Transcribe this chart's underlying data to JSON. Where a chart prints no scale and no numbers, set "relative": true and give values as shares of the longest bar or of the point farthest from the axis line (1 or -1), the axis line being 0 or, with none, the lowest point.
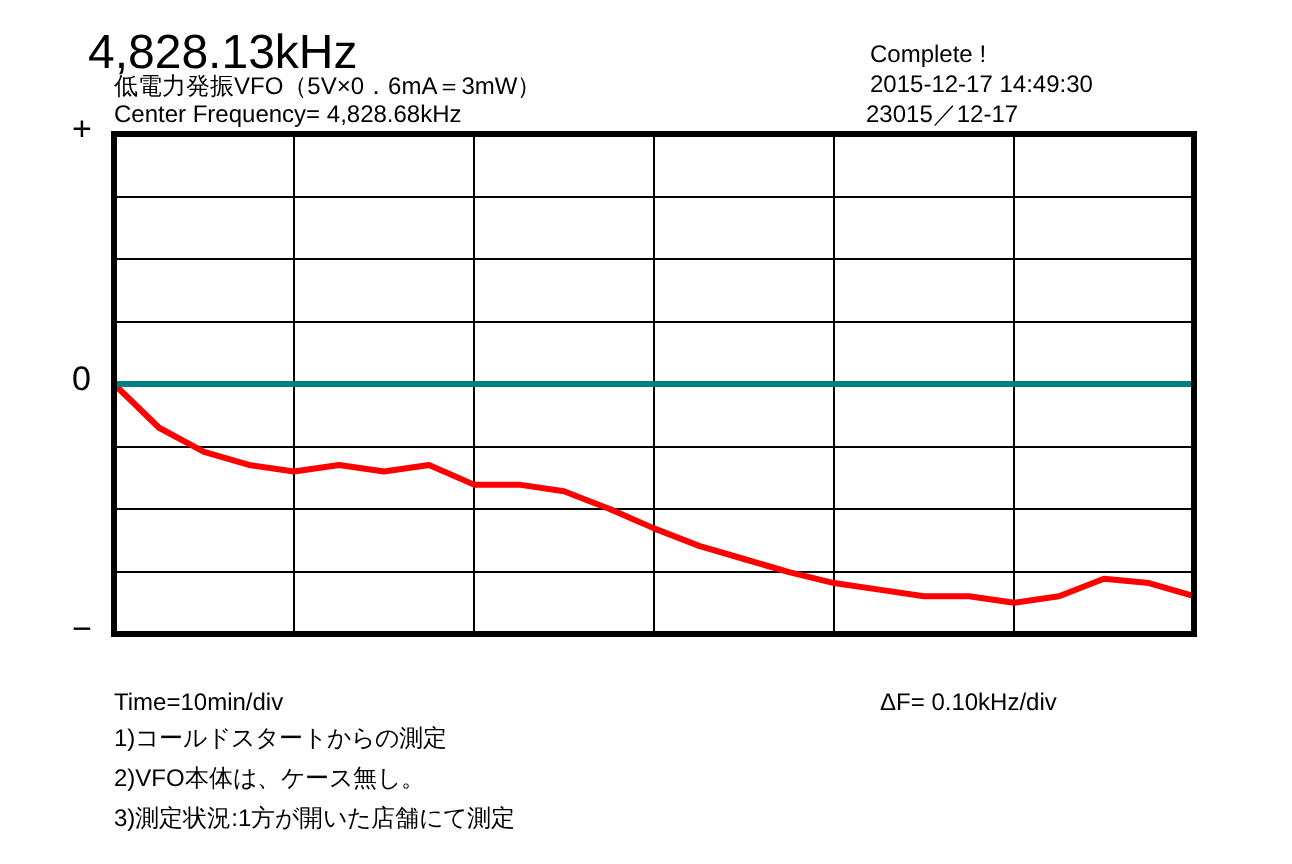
{
  "chart_data": {
    "type": "line",
    "title": "4,828.13kHz",
    "subtitle": "低電力発振VFO（5V×0．6mA＝3mW）",
    "annotations": [
      "+",
      "0",
      "−",
      "Complete !",
      "2015-12-17  14:49:30",
      "Center Frequency=  4,828.68kHz",
      "23015／12-17",
      "Time=10min/div",
      "ΔF=    0.10kHz/div",
      "1)コールドスタートからの測定",
      "2)VFO本体は、ケース無し。",
      "3)測定状況:1方が開いた店舗にて測定"
    ],
    "categories": [
      null,
      null,
      null,
      null,
      null,
      null,
      null,
      null,
      null,
      null,
      null,
      null,
      null,
      null,
      null,
      null,
      null,
      null,
      null,
      null,
      null,
      null,
      null,
      null,
      null
    ],
    "series": [
      {
        "color": "#ff0000",
        "values": [
          0,
          -0.2,
          -0.31,
          -0.37,
          -0.4,
          -0.37,
          -0.4,
          -0.37,
          -0.46,
          -0.46,
          -0.49,
          -0.57,
          -0.66,
          -0.74,
          -0.8,
          -0.86,
          -0.91,
          -0.94,
          -0.97,
          -0.97,
          -1,
          -0.97,
          -0.89,
          -0.91,
          -0.97
        ]
      }
    ],
    "relative": true,
    "grid": true,
    "legend": false,
    "marker": "none",
    "line_style": "solid",
    "ref_lines": [
      {
        "axis": "y",
        "value": 0,
        "color": "#008080"
      }
    ]
  }
}
